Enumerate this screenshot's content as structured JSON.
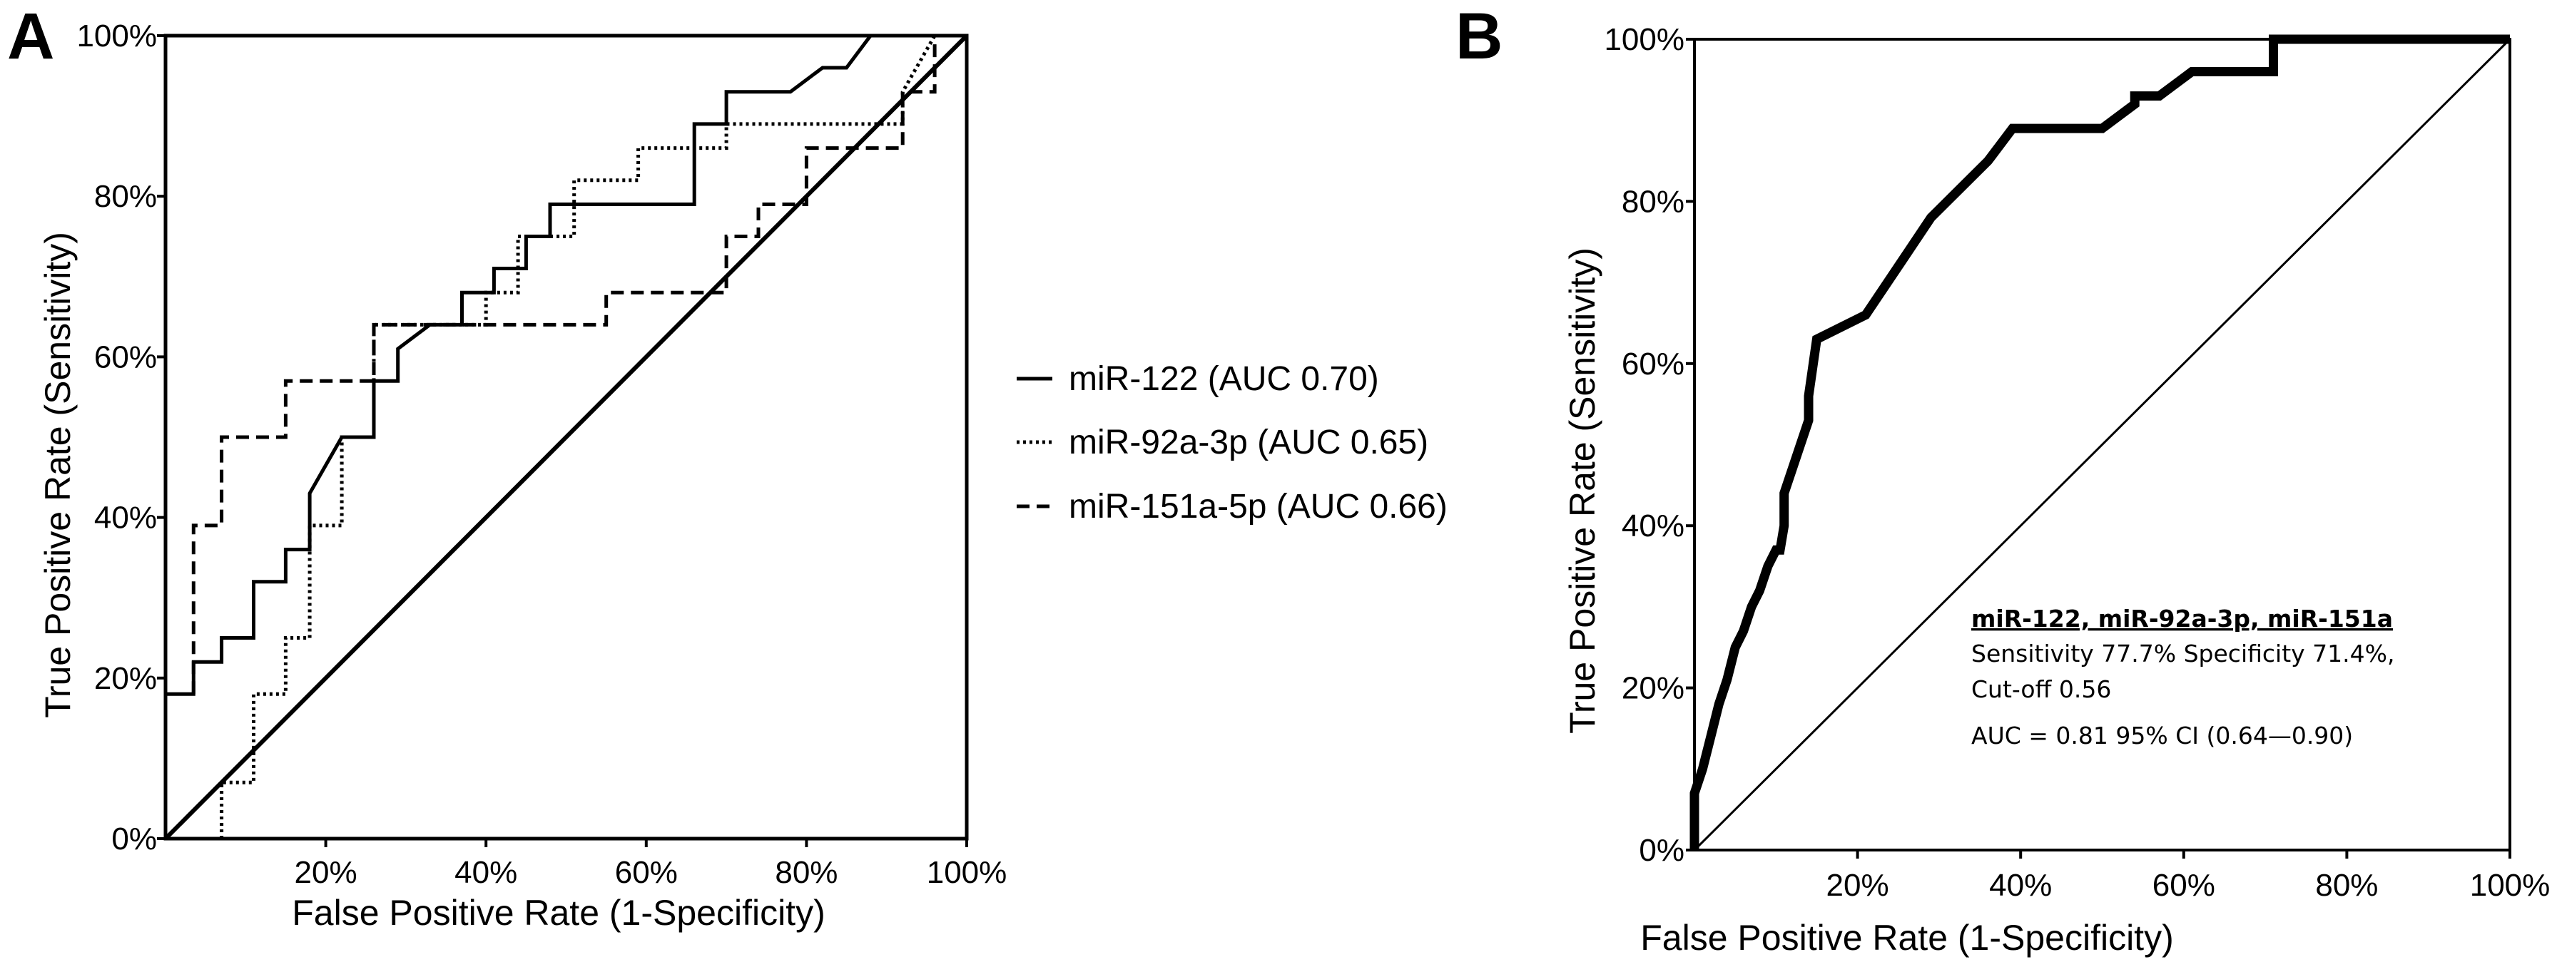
{
  "chart_data": [
    {
      "panel": "A",
      "type": "line",
      "xlabel": "False Positive Rate (1-Specificity)",
      "ylabel": "True Positive Rate (Sensitivity)",
      "xlim": [
        0,
        100
      ],
      "ylim": [
        0,
        100
      ],
      "x_ticks": [
        "20%",
        "40%",
        "60%",
        "80%",
        "100%"
      ],
      "y_ticks": [
        "0%",
        "20%",
        "40%",
        "60%",
        "80%",
        "100%"
      ],
      "reference_line": {
        "x": [
          0,
          100
        ],
        "y": [
          0,
          100
        ]
      },
      "series": [
        {
          "name": "miR-122",
          "label": "miR-122 (AUC 0.70)",
          "style": "solid",
          "x": [
            0,
            3.5,
            3.5,
            7,
            7,
            11,
            11,
            15,
            15,
            18,
            18,
            22,
            22,
            26,
            26,
            29,
            29,
            33,
            37,
            37,
            41,
            41,
            45,
            45,
            48,
            48,
            66,
            66,
            70,
            70,
            78,
            82,
            82,
            85,
            88
          ],
          "y": [
            18,
            18,
            22,
            22,
            25,
            25,
            32,
            32,
            36,
            36,
            43,
            50,
            50,
            50,
            57,
            57,
            61,
            64,
            64,
            68,
            68,
            71,
            71,
            75,
            75,
            79,
            79,
            89,
            89,
            93,
            93,
            96,
            96,
            96,
            100
          ]
        },
        {
          "name": "miR-92a-3p",
          "label": "miR-92a-3p (AUC 0.65)",
          "style": "dotted",
          "x": [
            7,
            7,
            11,
            11,
            15,
            15,
            18,
            18,
            22,
            22,
            26,
            26,
            37,
            40,
            40,
            44,
            44,
            51,
            51,
            59,
            59,
            70,
            70,
            88,
            92,
            92,
            96
          ],
          "y": [
            0,
            7,
            7,
            18,
            18,
            25,
            25,
            39,
            39,
            50,
            50,
            64,
            64,
            64,
            68,
            68,
            75,
            75,
            82,
            82,
            86,
            86,
            89,
            89,
            89,
            93,
            100
          ]
        },
        {
          "name": "miR-151a-5p",
          "label": "miR-151a-5p (AUC 0.66)",
          "style": "dashed",
          "x": [
            3.5,
            3.5,
            7,
            7,
            15,
            15,
            26,
            26,
            55,
            55,
            66,
            70,
            70,
            74,
            74,
            80,
            80,
            92,
            92,
            96,
            96
          ],
          "y": [
            18,
            39,
            39,
            50,
            50,
            57,
            57,
            64,
            64,
            68,
            68,
            68,
            75,
            75,
            79,
            79,
            86,
            86,
            93,
            93,
            100
          ]
        }
      ]
    },
    {
      "panel": "B",
      "type": "line",
      "xlabel": "False Positive Rate (1-Specificity)",
      "ylabel": "True Positive Rate (Sensitivity)",
      "xlim": [
        0,
        100
      ],
      "ylim": [
        0,
        100
      ],
      "x_ticks": [
        "20%",
        "40%",
        "60%",
        "80%",
        "100%"
      ],
      "y_ticks": [
        "0%",
        "20%",
        "40%",
        "60%",
        "80%",
        "100%"
      ],
      "reference_line": {
        "x": [
          0,
          100
        ],
        "y": [
          0,
          100
        ]
      },
      "series": [
        {
          "name": "miR-122, miR-92a-3p, miR-151a",
          "style": "solid-bold",
          "x": [
            0,
            0,
            1,
            2,
            3,
            4,
            5,
            6,
            7,
            8,
            9,
            10,
            10.5,
            11,
            11,
            14,
            14,
            15,
            15,
            21,
            21,
            25,
            29,
            36,
            39,
            50,
            50,
            54,
            54,
            57,
            57,
            61,
            61,
            71,
            71,
            100
          ],
          "y": [
            0,
            7,
            10,
            14,
            18,
            21,
            25,
            27,
            30,
            32,
            35,
            37,
            37,
            40,
            44,
            53,
            56,
            63,
            63,
            66,
            66,
            72,
            78,
            85,
            89,
            89,
            89,
            92,
            93,
            93,
            93,
            96,
            96,
            96,
            100,
            100
          ]
        }
      ],
      "annotation": {
        "title": "miR-122, miR-92a-3p, miR-151a",
        "line1": "Sensitivity 77.7% Specificity 71.4%,",
        "line2": "Cut-off 0.56",
        "line3": "AUC = 0.81 95% CI (0.64—0.90)"
      }
    }
  ]
}
